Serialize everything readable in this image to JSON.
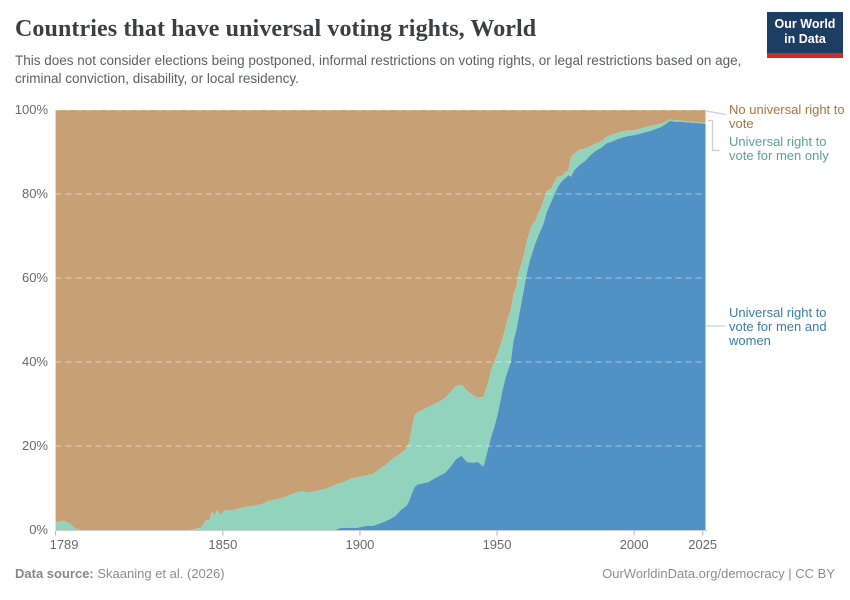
{
  "header": {
    "title": "Countries that have universal voting rights, World",
    "subtitle": "This does not consider elections being postponed, informal restrictions on voting rights, or legal restrictions based on age, criminal conviction, disability, or local residency.",
    "logo_line1": "Our World",
    "logo_line2": "in Data",
    "logo_bg_color": "#1d3d63",
    "logo_accent_color": "#cc2d26"
  },
  "legend": [
    {
      "label": "No universal right to vote",
      "text_color": "#ad7339",
      "fill_color": "#c7a076"
    },
    {
      "label": "Universal right to vote for men only",
      "text_color": "#59a392",
      "fill_color": "#92d3be"
    },
    {
      "label": "Universal right to vote for men and women",
      "text_color": "#3a7cab",
      "fill_color": "#5291c4"
    }
  ],
  "footer": {
    "source_label": "Data source:",
    "source_value": "Skaaning et al. (2026)",
    "credit": "OurWorldinData.org/democracy | CC BY"
  },
  "chart_data": {
    "type": "area",
    "stacked": true,
    "unit": "%",
    "title": "Countries that have universal voting rights, World",
    "xlim": [
      1789,
      2026
    ],
    "ylim": [
      0,
      100
    ],
    "grid": "dashed-horizontal",
    "legend_position": "right",
    "x_ticks": [
      {
        "value": 1789,
        "label": "1789"
      },
      {
        "value": 1850,
        "label": "1850"
      },
      {
        "value": 1900,
        "label": "1900"
      },
      {
        "value": 1950,
        "label": "1950"
      },
      {
        "value": 2000,
        "label": "2000"
      },
      {
        "value": 2025,
        "label": "2025"
      }
    ],
    "y_ticks": [
      {
        "value": 0,
        "label": "0%"
      },
      {
        "value": 20,
        "label": "20%"
      },
      {
        "value": 40,
        "label": "40%"
      },
      {
        "value": 60,
        "label": "60%"
      },
      {
        "value": 80,
        "label": "80%"
      },
      {
        "value": 100,
        "label": "100%"
      }
    ],
    "x": [
      1789,
      1790,
      1792,
      1794,
      1796,
      1798,
      1800,
      1810,
      1820,
      1830,
      1838,
      1840,
      1842,
      1844,
      1845,
      1846,
      1847,
      1848,
      1849,
      1851,
      1853,
      1855,
      1857,
      1859,
      1861,
      1863,
      1865,
      1867,
      1869,
      1871,
      1873,
      1875,
      1877,
      1879,
      1881,
      1883,
      1885,
      1887,
      1889,
      1891,
      1893,
      1895,
      1897,
      1899,
      1901,
      1903,
      1905,
      1907,
      1909,
      1911,
      1913,
      1915,
      1917,
      1918,
      1919,
      1920,
      1921,
      1923,
      1925,
      1927,
      1929,
      1931,
      1933,
      1935,
      1937,
      1939,
      1941,
      1943,
      1945,
      1946,
      1947,
      1948,
      1949,
      1950,
      1951,
      1952,
      1953,
      1954,
      1955,
      1956,
      1957,
      1958,
      1959,
      1960,
      1961,
      1962,
      1963,
      1964,
      1965,
      1966,
      1967,
      1968,
      1969,
      1970,
      1971,
      1972,
      1973,
      1974,
      1975,
      1976,
      1977,
      1978,
      1980,
      1982,
      1984,
      1986,
      1988,
      1990,
      1992,
      1994,
      1996,
      1998,
      2000,
      2002,
      2004,
      2006,
      2008,
      2010,
      2012,
      2013,
      2015,
      2017,
      2019,
      2021,
      2023,
      2026
    ],
    "series": [
      {
        "name": "Universal right to vote for men and women",
        "color": "#5291c4",
        "values": [
          0,
          0,
          0,
          0,
          0,
          0,
          0,
          0,
          0,
          0,
          0,
          0,
          0,
          0,
          0,
          0,
          0,
          0,
          0,
          0,
          0,
          0,
          0,
          0,
          0,
          0,
          0,
          0,
          0,
          0,
          0,
          0,
          0,
          0,
          0,
          0,
          0,
          0,
          0,
          0,
          0.5,
          0.5,
          0.5,
          0.5,
          0.8,
          1.0,
          1.0,
          1.5,
          2.0,
          2.6,
          3.4,
          4.8,
          5.8,
          7.0,
          8.8,
          10.3,
          10.8,
          11.1,
          11.4,
          12.2,
          12.9,
          13.6,
          15.0,
          16.8,
          17.7,
          16.2,
          16.0,
          16.2,
          15.1,
          17.5,
          20.0,
          22.5,
          24.5,
          27.0,
          30.0,
          33.3,
          36.0,
          38.0,
          40.0,
          45.0,
          47.6,
          51.0,
          54.5,
          58.0,
          61.5,
          64.3,
          66.3,
          68.3,
          70.0,
          71.5,
          73.0,
          75.5,
          77.0,
          78.5,
          80.0,
          81.5,
          82.5,
          83.3,
          83.8,
          84.5,
          84.1,
          85.5,
          86.9,
          87.8,
          89.2,
          90.3,
          91.0,
          92.1,
          92.5,
          93.1,
          93.5,
          93.8,
          94.0,
          94.3,
          94.7,
          95.0,
          95.5,
          96.0,
          96.9,
          97.4,
          97.2,
          97.2,
          97.1,
          97.0,
          96.9,
          96.7
        ]
      },
      {
        "name": "Universal right to vote for men only",
        "color": "#92d3be",
        "values": [
          1.6,
          2.0,
          2.2,
          1.6,
          0.4,
          0,
          0,
          0,
          0,
          0,
          0,
          0.3,
          0.5,
          2.4,
          2.2,
          4.4,
          3.4,
          4.8,
          3.6,
          4.8,
          4.6,
          5.0,
          5.3,
          5.6,
          5.7,
          6.0,
          6.3,
          7.0,
          7.2,
          7.5,
          7.9,
          8.5,
          9.0,
          9.2,
          8.9,
          9.1,
          9.4,
          9.7,
          10.2,
          10.8,
          10.7,
          11.2,
          11.8,
          12.0,
          12.0,
          12.1,
          12.4,
          13.0,
          13.3,
          13.9,
          14.0,
          13.5,
          13.7,
          14.0,
          15.7,
          17.1,
          17.2,
          17.5,
          17.9,
          17.7,
          17.7,
          17.8,
          17.8,
          17.5,
          16.9,
          17.0,
          16.2,
          15.3,
          16.6,
          16.0,
          15.7,
          16.0,
          15.5,
          14.7,
          13.5,
          12.2,
          12.0,
          12.5,
          12.5,
          11.0,
          10.3,
          10.5,
          9.0,
          8.0,
          7.5,
          7.1,
          6.5,
          5.2,
          5.5,
          5.0,
          5.5,
          5.1,
          4.0,
          3.0,
          3.0,
          2.6,
          1.6,
          1.2,
          1.5,
          1.0,
          4.8,
          4.0,
          3.6,
          3.0,
          2.2,
          1.7,
          1.5,
          1.6,
          1.6,
          1.5,
          1.5,
          1.3,
          1.2,
          1.2,
          1.2,
          1.2,
          1.0,
          0.8,
          0.5,
          0.3,
          0.4,
          0.3,
          0.2,
          0.2,
          0.2,
          0.3
        ]
      },
      {
        "name": "No universal right to vote",
        "color": "#c7a076",
        "values": [
          98.4,
          98.0,
          97.8,
          98.4,
          99.6,
          100,
          100,
          100,
          100,
          100,
          100,
          99.7,
          99.5,
          97.6,
          97.8,
          95.6,
          96.6,
          95.2,
          96.4,
          95.2,
          95.4,
          95.0,
          94.7,
          94.4,
          94.3,
          94.0,
          93.7,
          93.0,
          92.8,
          92.5,
          92.1,
          91.5,
          91.0,
          90.8,
          91.1,
          90.9,
          90.6,
          90.3,
          89.8,
          89.2,
          88.8,
          88.3,
          87.7,
          87.5,
          87.2,
          86.9,
          86.6,
          85.5,
          84.7,
          83.5,
          82.6,
          81.7,
          80.5,
          79.0,
          75.5,
          72.6,
          72.0,
          71.4,
          70.7,
          70.1,
          69.4,
          68.6,
          67.2,
          65.7,
          65.4,
          66.8,
          67.8,
          68.5,
          68.3,
          66.5,
          64.3,
          61.5,
          60.0,
          58.3,
          56.5,
          54.5,
          52.0,
          49.5,
          47.5,
          44.0,
          42.1,
          38.5,
          36.5,
          34.0,
          31.0,
          28.6,
          27.2,
          26.5,
          24.5,
          23.5,
          21.5,
          19.4,
          19.0,
          18.5,
          17.0,
          15.9,
          15.9,
          15.5,
          14.7,
          14.5,
          11.1,
          10.5,
          9.5,
          9.2,
          8.6,
          8.0,
          7.5,
          6.3,
          5.9,
          5.4,
          5.0,
          4.9,
          4.8,
          4.5,
          4.1,
          3.8,
          3.5,
          3.2,
          2.6,
          2.3,
          2.4,
          2.5,
          2.7,
          2.8,
          2.9,
          3.0
        ]
      }
    ]
  }
}
